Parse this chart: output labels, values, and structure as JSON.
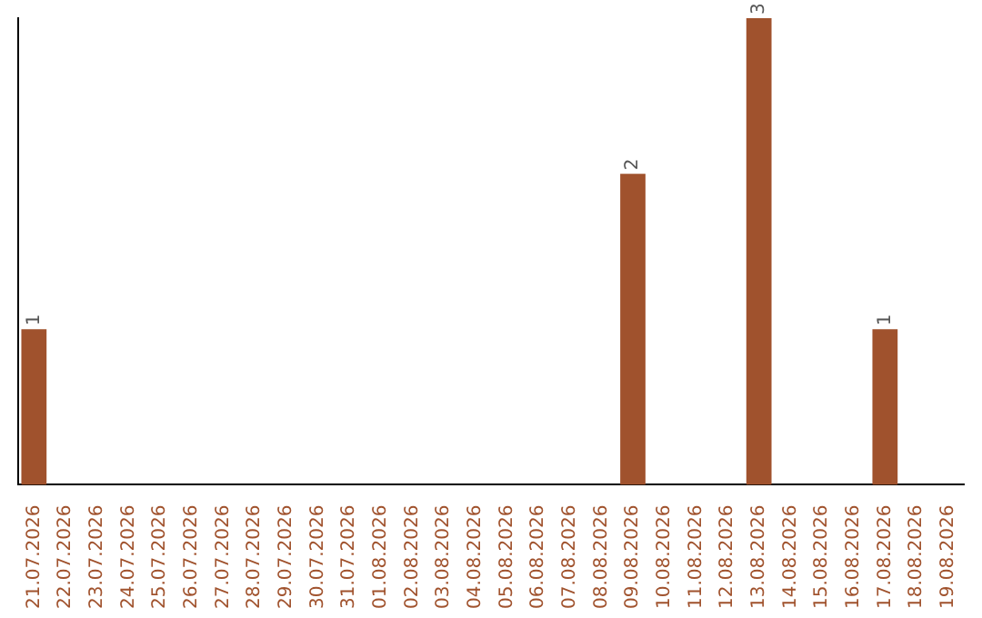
{
  "chart_data": {
    "type": "bar",
    "categories": [
      "21.07.2026",
      "22.07.2026",
      "23.07.2026",
      "24.07.2026",
      "25.07.2026",
      "26.07.2026",
      "27.07.2026",
      "28.07.2026",
      "29.07.2026",
      "30.07.2026",
      "31.07.2026",
      "01.08.2026",
      "02.08.2026",
      "03.08.2026",
      "04.08.2026",
      "05.08.2026",
      "06.08.2026",
      "07.08.2026",
      "08.08.2026",
      "09.08.2026",
      "10.08.2026",
      "11.08.2026",
      "12.08.2026",
      "13.08.2026",
      "14.08.2026",
      "15.08.2026",
      "16.08.2026",
      "17.08.2026",
      "18.08.2026",
      "19.08.2026"
    ],
    "values": [
      1,
      0,
      0,
      0,
      0,
      0,
      0,
      0,
      0,
      0,
      0,
      0,
      0,
      0,
      0,
      0,
      0,
      0,
      0,
      2,
      0,
      0,
      0,
      3,
      0,
      0,
      0,
      1,
      0,
      0
    ],
    "value_labels": [
      "1",
      null,
      null,
      null,
      null,
      null,
      null,
      null,
      null,
      null,
      null,
      null,
      null,
      null,
      null,
      null,
      null,
      null,
      null,
      "2",
      null,
      null,
      null,
      "3",
      null,
      null,
      null,
      "1",
      null,
      null
    ],
    "color": "#a0522d",
    "grid": false,
    "legend": false,
    "tick_labels": "x"
  }
}
